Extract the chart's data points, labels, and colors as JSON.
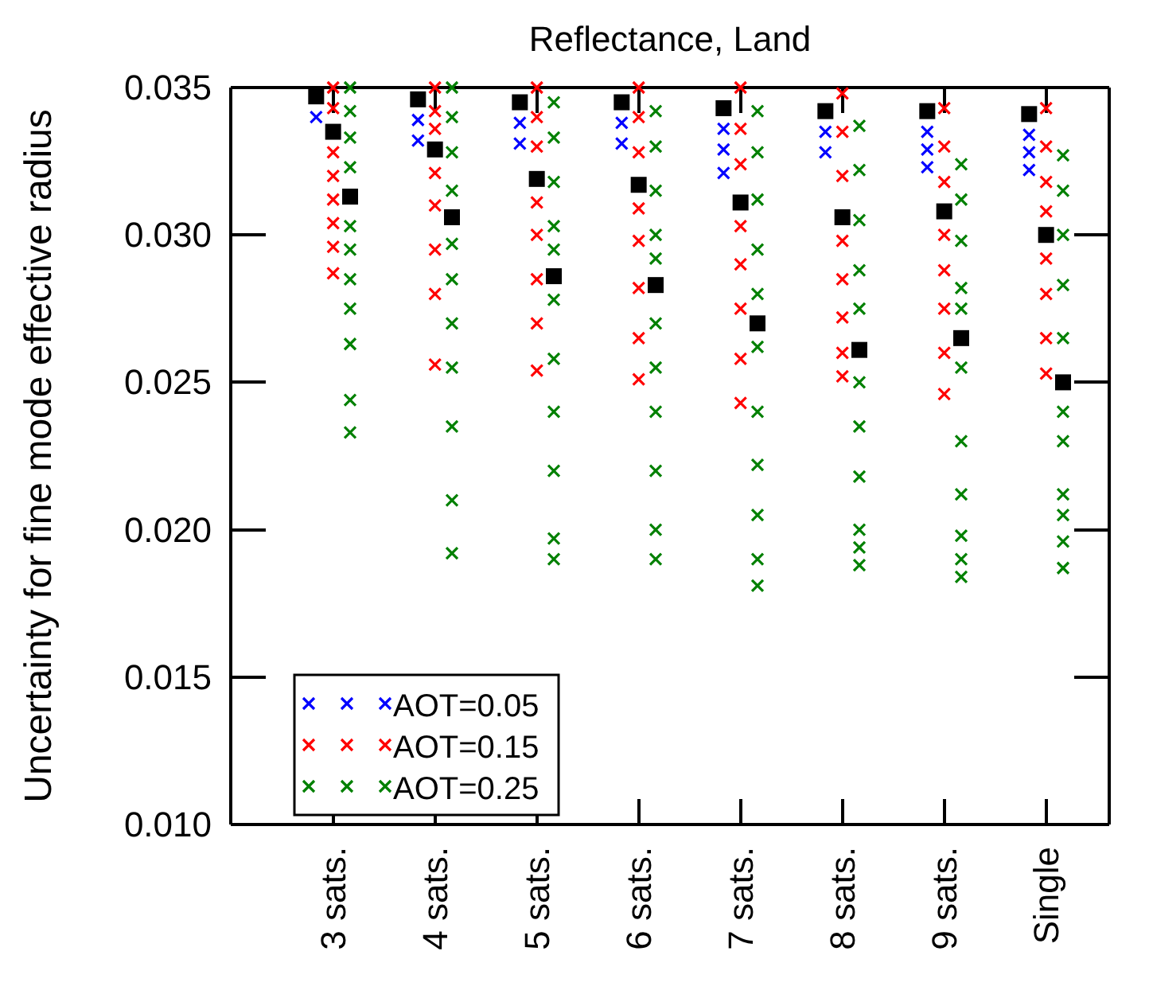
{
  "chart_data": {
    "type": "scatter",
    "title": "Reflectance, Land",
    "ylabel": "Uncertainty for fine mode effective radius",
    "categories": [
      null,
      null,
      null,
      "3 sats.",
      null,
      null,
      null,
      null,
      null,
      "4 sats.",
      null,
      null,
      null,
      null,
      null,
      "5 sats.",
      null,
      null,
      null,
      null,
      null,
      "6 sats.",
      null,
      null,
      null,
      null,
      null,
      "7 sats.",
      null,
      null,
      null,
      null,
      null,
      "8 sats.",
      null,
      null,
      null,
      null,
      null,
      "9 sats.",
      null,
      null,
      null,
      null,
      null,
      "Single",
      null,
      null
    ],
    "ylim": [
      0.01,
      0.035
    ],
    "yticks": [
      {
        "value": 0.01,
        "label": "0.010"
      },
      {
        "value": 0.015,
        "label": "0.015"
      },
      {
        "value": 0.02,
        "label": "0.020"
      },
      {
        "value": 0.025,
        "label": "0.025"
      },
      {
        "value": 0.03,
        "label": "0.030"
      },
      {
        "value": 0.035,
        "label": "0.035"
      }
    ],
    "legend": "bottom left",
    "series": [
      {
        "color": "#000000",
        "marker": "square",
        "values": [
          null,
          null,
          0.0347,
          null,
          null,
          null,
          null,
          null,
          0.0346,
          null,
          null,
          null,
          null,
          null,
          0.0345,
          null,
          null,
          null,
          null,
          null,
          0.0345,
          null,
          null,
          null,
          null,
          null,
          0.0343,
          null,
          null,
          null,
          null,
          null,
          0.0342,
          null,
          null,
          null,
          null,
          null,
          0.0342,
          null,
          null,
          null,
          null,
          null,
          0.0341,
          null,
          null,
          null
        ]
      },
      {
        "color": "#000000",
        "marker": "square",
        "values": [
          null,
          null,
          null,
          0.0335,
          null,
          null,
          null,
          null,
          null,
          0.0329,
          null,
          null,
          null,
          null,
          null,
          0.0319,
          null,
          null,
          null,
          null,
          null,
          0.0317,
          null,
          null,
          null,
          null,
          null,
          0.0311,
          null,
          null,
          null,
          null,
          null,
          0.0306,
          null,
          null,
          null,
          null,
          null,
          0.0308,
          null,
          null,
          null,
          null,
          null,
          0.03,
          null,
          null
        ]
      },
      {
        "color": "#000000",
        "marker": "square",
        "values": [
          null,
          null,
          null,
          null,
          0.0313,
          null,
          null,
          null,
          null,
          null,
          0.0306,
          null,
          null,
          null,
          null,
          null,
          0.0286,
          null,
          null,
          null,
          null,
          null,
          0.0283,
          null,
          null,
          null,
          null,
          null,
          0.027,
          null,
          null,
          null,
          null,
          null,
          0.0261,
          null,
          null,
          null,
          null,
          null,
          0.0265,
          null,
          null,
          null,
          null,
          null,
          0.025,
          null
        ]
      },
      {
        "name": "AOT=0.05",
        "color": "#0000ff",
        "marker": "cross",
        "values": [
          null,
          null,
          0.034,
          null,
          null,
          null,
          null,
          null,
          0.0339,
          null,
          null,
          null,
          null,
          null,
          0.0338,
          null,
          null,
          null,
          null,
          null,
          0.0338,
          null,
          null,
          null,
          null,
          null,
          0.0336,
          null,
          null,
          null,
          null,
          null,
          0.0335,
          null,
          null,
          null,
          null,
          null,
          0.0335,
          null,
          null,
          null,
          null,
          null,
          0.0334,
          null,
          null,
          null
        ]
      },
      {
        "color": "#0000ff",
        "marker": "cross",
        "values": [
          null,
          null,
          null,
          null,
          null,
          null,
          null,
          null,
          0.0332,
          null,
          null,
          null,
          null,
          null,
          0.0331,
          null,
          null,
          null,
          null,
          null,
          0.0331,
          null,
          null,
          null,
          null,
          null,
          0.0329,
          null,
          null,
          null,
          null,
          null,
          0.0328,
          null,
          null,
          null,
          null,
          null,
          0.0329,
          null,
          null,
          null,
          null,
          null,
          0.0328,
          null,
          null,
          null
        ]
      },
      {
        "color": "#0000ff",
        "marker": "cross",
        "values": [
          null,
          null,
          null,
          null,
          null,
          null,
          null,
          null,
          null,
          null,
          null,
          null,
          null,
          null,
          null,
          null,
          null,
          null,
          null,
          null,
          null,
          null,
          null,
          null,
          null,
          null,
          0.0321,
          null,
          null,
          null,
          null,
          null,
          null,
          null,
          null,
          null,
          null,
          null,
          0.0323,
          null,
          null,
          null,
          null,
          null,
          0.0322,
          null,
          null,
          null
        ]
      },
      {
        "name": "AOT=0.15",
        "color": "#ff0000",
        "marker": "cross",
        "values": [
          null,
          null,
          null,
          0.035,
          null,
          null,
          null,
          null,
          null,
          0.035,
          null,
          null,
          null,
          null,
          null,
          0.035,
          null,
          null,
          null,
          null,
          null,
          0.035,
          null,
          null,
          null,
          null,
          null,
          0.035,
          null,
          null,
          null,
          null,
          null,
          0.0348,
          null,
          null,
          null,
          null,
          null,
          0.0343,
          null,
          null,
          null,
          null,
          null,
          0.0343,
          null,
          null
        ]
      },
      {
        "color": "#ff0000",
        "marker": "cross",
        "values": [
          null,
          null,
          null,
          0.0343,
          null,
          null,
          null,
          null,
          null,
          0.0342,
          null,
          null,
          null,
          null,
          null,
          0.034,
          null,
          null,
          null,
          null,
          null,
          0.034,
          null,
          null,
          null,
          null,
          null,
          0.0336,
          null,
          null,
          null,
          null,
          null,
          0.0335,
          null,
          null,
          null,
          null,
          null,
          0.033,
          null,
          null,
          null,
          null,
          null,
          0.033,
          null,
          null
        ]
      },
      {
        "color": "#ff0000",
        "marker": "cross",
        "values": [
          null,
          null,
          null,
          0.0328,
          null,
          null,
          null,
          null,
          null,
          0.0336,
          null,
          null,
          null,
          null,
          null,
          0.033,
          null,
          null,
          null,
          null,
          null,
          0.0328,
          null,
          null,
          null,
          null,
          null,
          0.0324,
          null,
          null,
          null,
          null,
          null,
          0.032,
          null,
          null,
          null,
          null,
          null,
          0.0318,
          null,
          null,
          null,
          null,
          null,
          0.0318,
          null,
          null
        ]
      },
      {
        "color": "#ff0000",
        "marker": "cross",
        "values": [
          null,
          null,
          null,
          0.032,
          null,
          null,
          null,
          null,
          null,
          0.0321,
          null,
          null,
          null,
          null,
          null,
          0.0311,
          null,
          null,
          null,
          null,
          null,
          0.0309,
          null,
          null,
          null,
          null,
          null,
          0.0303,
          null,
          null,
          null,
          null,
          null,
          0.0298,
          null,
          null,
          null,
          null,
          null,
          0.03,
          null,
          null,
          null,
          null,
          null,
          0.0308,
          null,
          null
        ]
      },
      {
        "color": "#ff0000",
        "marker": "cross",
        "values": [
          null,
          null,
          null,
          0.0312,
          null,
          null,
          null,
          null,
          null,
          0.031,
          null,
          null,
          null,
          null,
          null,
          0.03,
          null,
          null,
          null,
          null,
          null,
          0.0298,
          null,
          null,
          null,
          null,
          null,
          0.029,
          null,
          null,
          null,
          null,
          null,
          0.0285,
          null,
          null,
          null,
          null,
          null,
          0.0288,
          null,
          null,
          null,
          null,
          null,
          0.0292,
          null,
          null
        ]
      },
      {
        "color": "#ff0000",
        "marker": "cross",
        "values": [
          null,
          null,
          null,
          0.0304,
          null,
          null,
          null,
          null,
          null,
          0.0295,
          null,
          null,
          null,
          null,
          null,
          0.0285,
          null,
          null,
          null,
          null,
          null,
          0.0282,
          null,
          null,
          null,
          null,
          null,
          0.0275,
          null,
          null,
          null,
          null,
          null,
          0.0272,
          null,
          null,
          null,
          null,
          null,
          0.0275,
          null,
          null,
          null,
          null,
          null,
          0.028,
          null,
          null
        ]
      },
      {
        "color": "#ff0000",
        "marker": "cross",
        "values": [
          null,
          null,
          null,
          0.0296,
          null,
          null,
          null,
          null,
          null,
          0.028,
          null,
          null,
          null,
          null,
          null,
          0.027,
          null,
          null,
          null,
          null,
          null,
          0.0265,
          null,
          null,
          null,
          null,
          null,
          0.0258,
          null,
          null,
          null,
          null,
          null,
          0.026,
          null,
          null,
          null,
          null,
          null,
          0.026,
          null,
          null,
          null,
          null,
          null,
          0.0265,
          null,
          null
        ]
      },
      {
        "color": "#ff0000",
        "marker": "cross",
        "values": [
          null,
          null,
          null,
          0.0287,
          null,
          null,
          null,
          null,
          null,
          0.0256,
          null,
          null,
          null,
          null,
          null,
          0.0254,
          null,
          null,
          null,
          null,
          null,
          0.0251,
          null,
          null,
          null,
          null,
          null,
          0.0243,
          null,
          null,
          null,
          null,
          null,
          0.0252,
          null,
          null,
          null,
          null,
          null,
          0.0246,
          null,
          null,
          null,
          null,
          null,
          0.0253,
          null,
          null
        ]
      },
      {
        "name": "AOT=0.25",
        "color": "#008000",
        "marker": "cross",
        "values": [
          null,
          null,
          null,
          null,
          0.035,
          null,
          null,
          null,
          null,
          null,
          0.035,
          null,
          null,
          null,
          null,
          null,
          0.0345,
          null,
          null,
          null,
          null,
          null,
          0.0342,
          null,
          null,
          null,
          null,
          null,
          0.0342,
          null,
          null,
          null,
          null,
          null,
          0.0337,
          null,
          null,
          null,
          null,
          null,
          0.0324,
          null,
          null,
          null,
          null,
          null,
          0.0327,
          null
        ]
      },
      {
        "color": "#008000",
        "marker": "cross",
        "values": [
          null,
          null,
          null,
          null,
          0.0342,
          null,
          null,
          null,
          null,
          null,
          0.034,
          null,
          null,
          null,
          null,
          null,
          0.0333,
          null,
          null,
          null,
          null,
          null,
          0.033,
          null,
          null,
          null,
          null,
          null,
          0.0328,
          null,
          null,
          null,
          null,
          null,
          0.0322,
          null,
          null,
          null,
          null,
          null,
          0.0312,
          null,
          null,
          null,
          null,
          null,
          0.0315,
          null
        ]
      },
      {
        "color": "#008000",
        "marker": "cross",
        "values": [
          null,
          null,
          null,
          null,
          0.0333,
          null,
          null,
          null,
          null,
          null,
          0.0328,
          null,
          null,
          null,
          null,
          null,
          0.0318,
          null,
          null,
          null,
          null,
          null,
          0.0315,
          null,
          null,
          null,
          null,
          null,
          0.0312,
          null,
          null,
          null,
          null,
          null,
          0.0305,
          null,
          null,
          null,
          null,
          null,
          0.0298,
          null,
          null,
          null,
          null,
          null,
          0.03,
          null
        ]
      },
      {
        "color": "#008000",
        "marker": "cross",
        "values": [
          null,
          null,
          null,
          null,
          0.0323,
          null,
          null,
          null,
          null,
          null,
          0.0315,
          null,
          null,
          null,
          null,
          null,
          0.0303,
          null,
          null,
          null,
          null,
          null,
          0.03,
          null,
          null,
          null,
          null,
          null,
          0.0295,
          null,
          null,
          null,
          null,
          null,
          0.0288,
          null,
          null,
          null,
          null,
          null,
          0.0282,
          null,
          null,
          null,
          null,
          null,
          0.0283,
          null
        ]
      },
      {
        "color": "#008000",
        "marker": "cross",
        "values": [
          null,
          null,
          null,
          null,
          0.0303,
          null,
          null,
          null,
          null,
          null,
          0.0297,
          null,
          null,
          null,
          null,
          null,
          0.0295,
          null,
          null,
          null,
          null,
          null,
          0.0292,
          null,
          null,
          null,
          null,
          null,
          0.028,
          null,
          null,
          null,
          null,
          null,
          0.0275,
          null,
          null,
          null,
          null,
          null,
          0.0275,
          null,
          null,
          null,
          null,
          null,
          0.0265,
          null
        ]
      },
      {
        "color": "#008000",
        "marker": "cross",
        "values": [
          null,
          null,
          null,
          null,
          0.0295,
          null,
          null,
          null,
          null,
          null,
          0.0285,
          null,
          null,
          null,
          null,
          null,
          0.0278,
          null,
          null,
          null,
          null,
          null,
          0.027,
          null,
          null,
          null,
          null,
          null,
          0.0262,
          null,
          null,
          null,
          null,
          null,
          0.025,
          null,
          null,
          null,
          null,
          null,
          0.0255,
          null,
          null,
          null,
          null,
          null,
          0.024,
          null
        ]
      },
      {
        "color": "#008000",
        "marker": "cross",
        "values": [
          null,
          null,
          null,
          null,
          0.0285,
          null,
          null,
          null,
          null,
          null,
          0.027,
          null,
          null,
          null,
          null,
          null,
          0.0258,
          null,
          null,
          null,
          null,
          null,
          0.0255,
          null,
          null,
          null,
          null,
          null,
          0.024,
          null,
          null,
          null,
          null,
          null,
          0.0235,
          null,
          null,
          null,
          null,
          null,
          0.023,
          null,
          null,
          null,
          null,
          null,
          0.023,
          null
        ]
      },
      {
        "color": "#008000",
        "marker": "cross",
        "values": [
          null,
          null,
          null,
          null,
          0.0275,
          null,
          null,
          null,
          null,
          null,
          0.0255,
          null,
          null,
          null,
          null,
          null,
          0.024,
          null,
          null,
          null,
          null,
          null,
          0.024,
          null,
          null,
          null,
          null,
          null,
          0.0222,
          null,
          null,
          null,
          null,
          null,
          0.0218,
          null,
          null,
          null,
          null,
          null,
          0.0212,
          null,
          null,
          null,
          null,
          null,
          0.0212,
          null
        ]
      },
      {
        "color": "#008000",
        "marker": "cross",
        "values": [
          null,
          null,
          null,
          null,
          0.0263,
          null,
          null,
          null,
          null,
          null,
          0.0235,
          null,
          null,
          null,
          null,
          null,
          0.022,
          null,
          null,
          null,
          null,
          null,
          0.022,
          null,
          null,
          null,
          null,
          null,
          0.0205,
          null,
          null,
          null,
          null,
          null,
          0.02,
          null,
          null,
          null,
          null,
          null,
          0.0198,
          null,
          null,
          null,
          null,
          null,
          0.0205,
          null
        ]
      },
      {
        "color": "#008000",
        "marker": "cross",
        "values": [
          null,
          null,
          null,
          null,
          0.0244,
          null,
          null,
          null,
          null,
          null,
          0.021,
          null,
          null,
          null,
          null,
          null,
          0.0197,
          null,
          null,
          null,
          null,
          null,
          0.02,
          null,
          null,
          null,
          null,
          null,
          0.019,
          null,
          null,
          null,
          null,
          null,
          0.0194,
          null,
          null,
          null,
          null,
          null,
          0.019,
          null,
          null,
          null,
          null,
          null,
          0.0196,
          null
        ]
      },
      {
        "color": "#008000",
        "marker": "cross",
        "values": [
          null,
          null,
          null,
          null,
          0.0233,
          null,
          null,
          null,
          null,
          null,
          0.0192,
          null,
          null,
          null,
          null,
          null,
          0.019,
          null,
          null,
          null,
          null,
          null,
          0.019,
          null,
          null,
          null,
          null,
          null,
          0.0181,
          null,
          null,
          null,
          null,
          null,
          0.0188,
          null,
          null,
          null,
          null,
          null,
          0.0184,
          null,
          null,
          null,
          null,
          null,
          0.0187,
          null
        ]
      }
    ]
  }
}
